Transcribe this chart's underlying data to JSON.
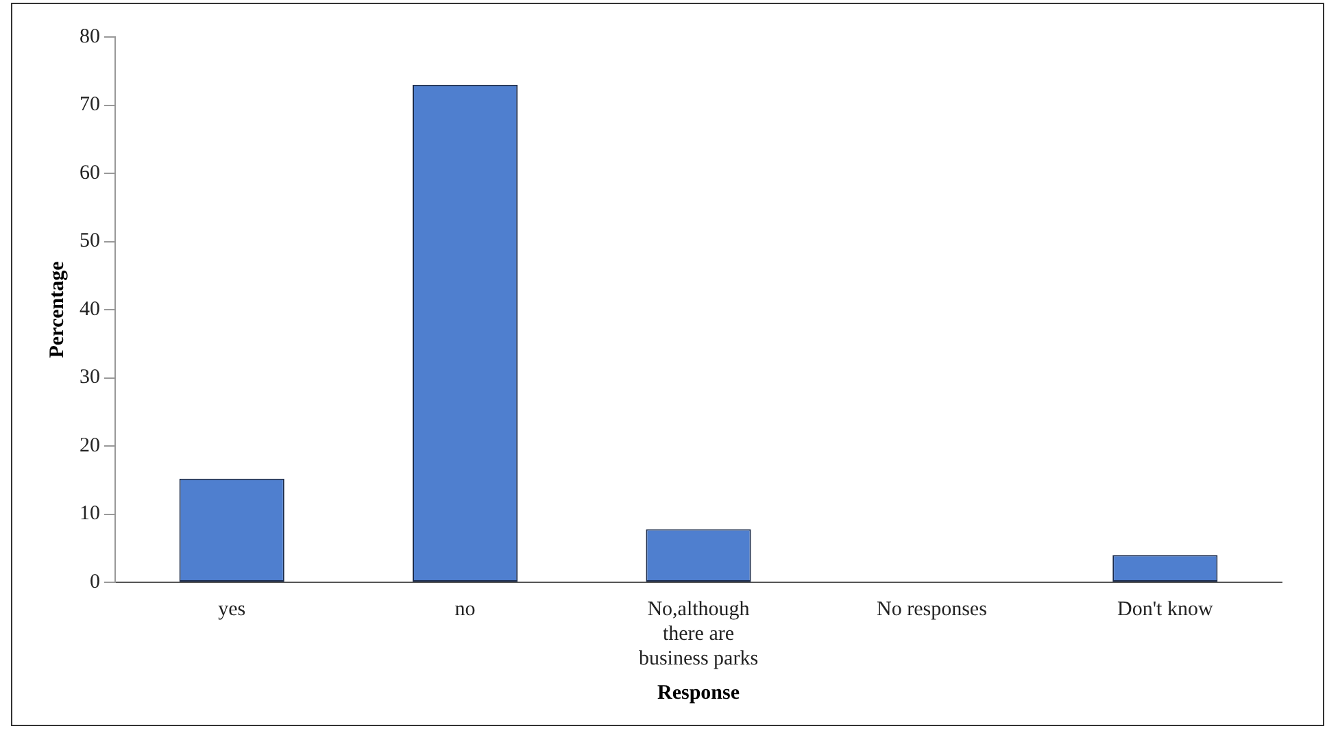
{
  "chart_data": {
    "type": "bar",
    "xlabel": "Response",
    "ylabel": "Percentage",
    "categories": [
      "yes",
      "no",
      "No,although there are business parks",
      "No responses",
      "Don't know"
    ],
    "values": [
      15.2,
      73,
      7.8,
      0,
      4
    ],
    "color": "#4f7fcf",
    "ylim": [
      0,
      80
    ],
    "yticks": [
      0,
      10,
      20,
      30,
      40,
      50,
      60,
      70,
      80
    ],
    "grid": false,
    "legend": false
  }
}
